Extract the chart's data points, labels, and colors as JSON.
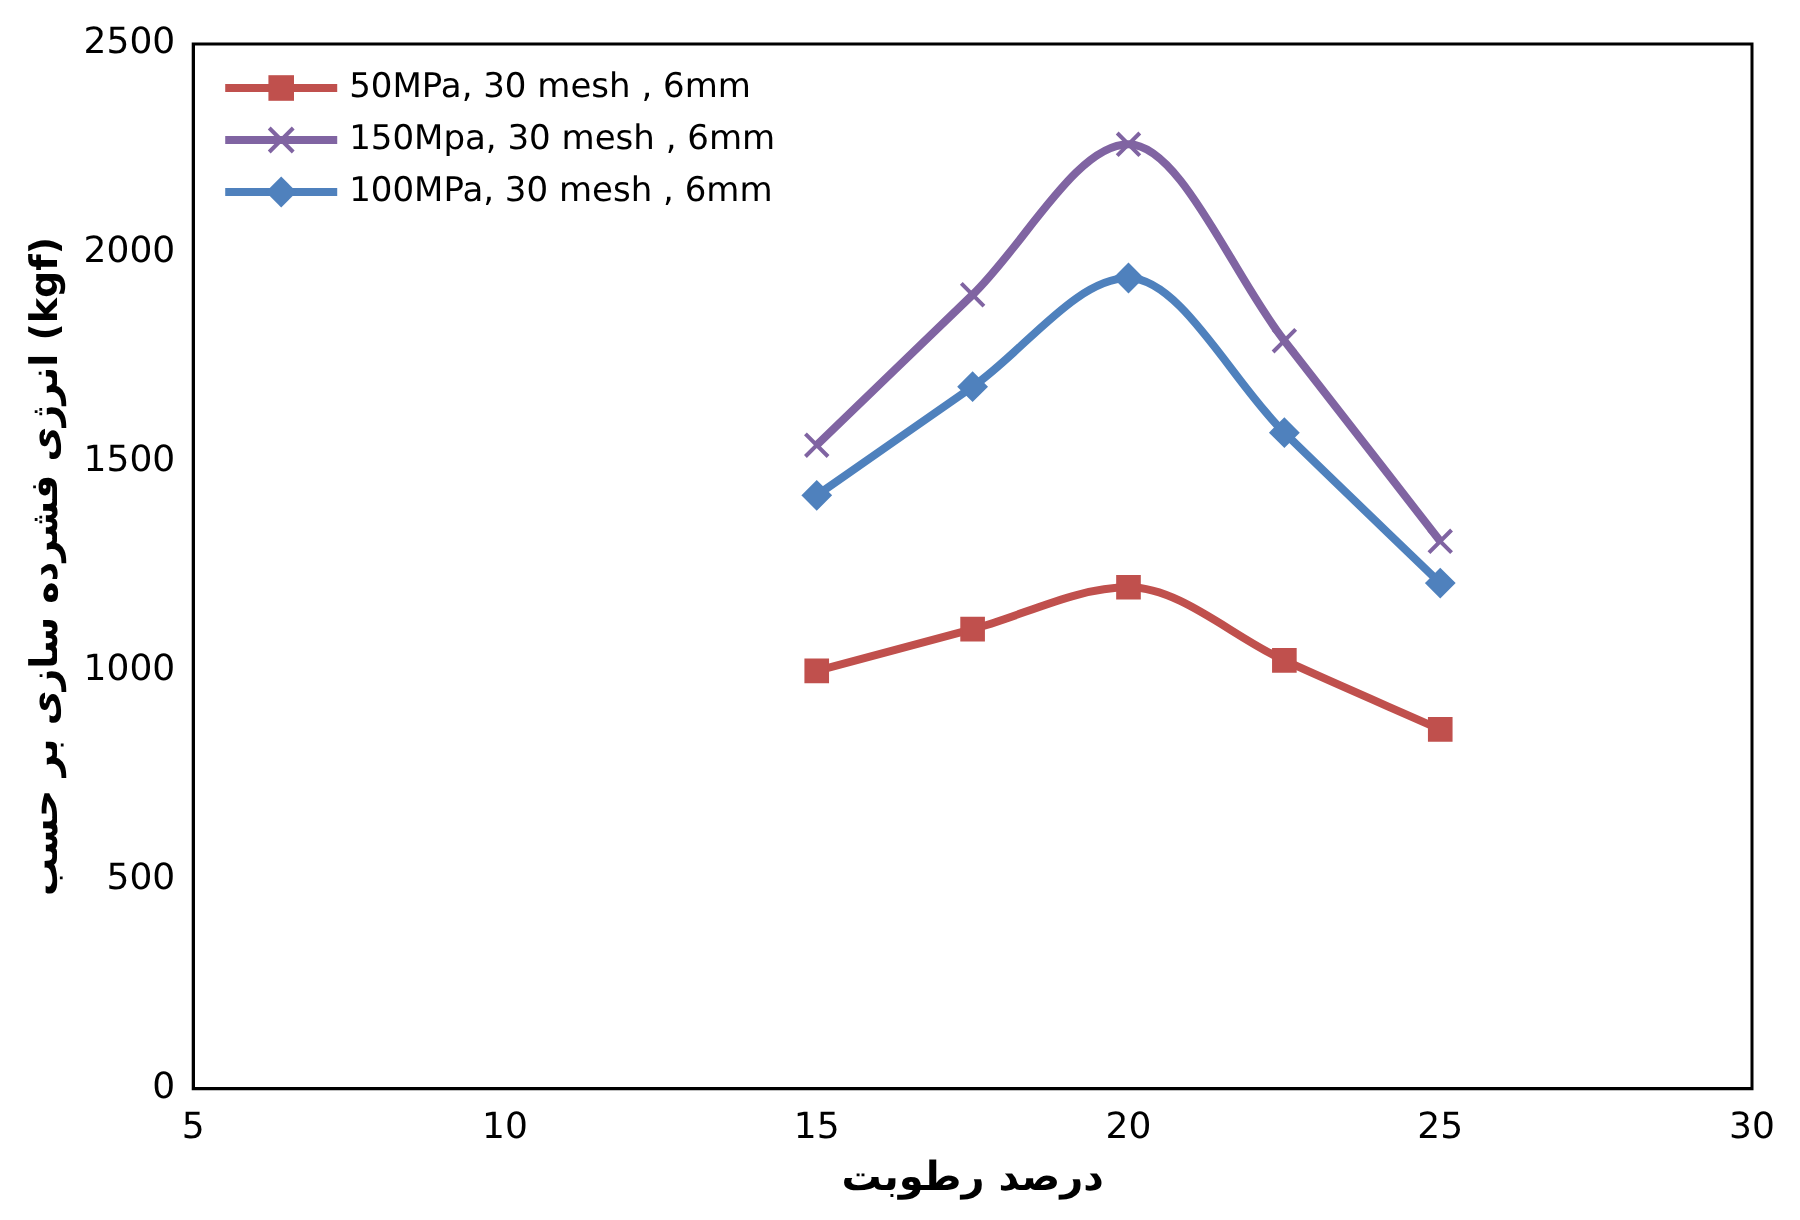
{
  "chart_data": {
    "type": "line",
    "xlabel": "درصد رطوبت",
    "ylabel": "انرژی فشرده سازی بر حسب (kgf)",
    "x": [
      15,
      17.5,
      20,
      22.5,
      25
    ],
    "series": [
      {
        "name": "50MPa, 30 mesh , 6mm",
        "color": "#c0504d",
        "marker": "square",
        "values": [
          1000,
          1100,
          1200,
          1025,
          860
        ]
      },
      {
        "name": "150Mpa, 30 mesh , 6mm",
        "color": "#8064a2",
        "marker": "cross",
        "values": [
          1540,
          1900,
          2260,
          1790,
          1310
        ]
      },
      {
        "name": "100MPa, 30 mesh , 6mm",
        "color": "#4f81bd",
        "marker": "diamond",
        "values": [
          1420,
          1680,
          1940,
          1570,
          1210
        ]
      }
    ],
    "xlim": [
      5,
      30
    ],
    "xticks": [
      5,
      10,
      15,
      20,
      25,
      30
    ],
    "ylim": [
      0,
      2500
    ],
    "yticks": [
      0,
      500,
      1000,
      1500,
      2000,
      2500
    ],
    "grid": false,
    "legend": "top left",
    "line_style": "solid"
  }
}
